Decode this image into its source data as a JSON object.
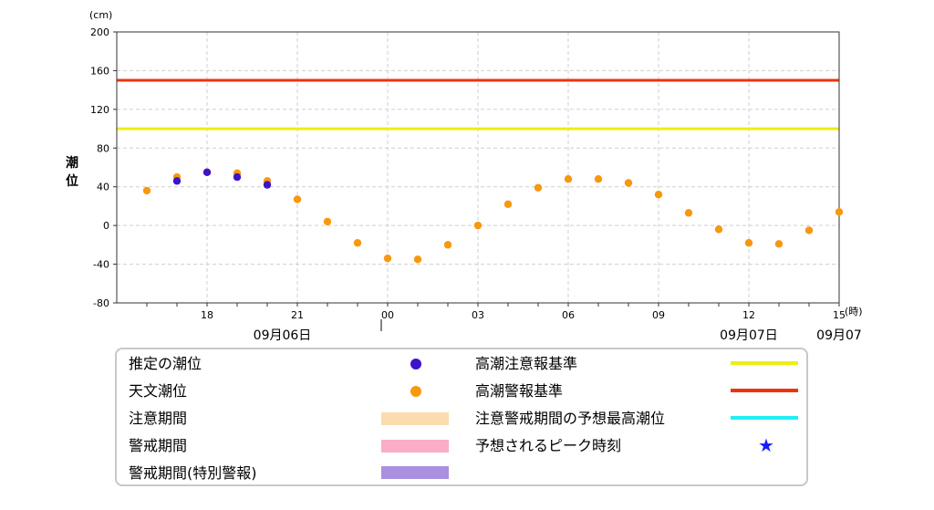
{
  "chart_data": {
    "type": "scatter",
    "y_unit": "(cm)",
    "x_unit": "(時)",
    "ylabel": "潮位",
    "ylim": [
      -80,
      200
    ],
    "yticks": [
      200,
      160,
      120,
      80,
      40,
      0,
      -40,
      -80
    ],
    "xlim": [
      15,
      39
    ],
    "xticks": [
      {
        "x": 18,
        "label": "18"
      },
      {
        "x": 21,
        "label": "21"
      },
      {
        "x": 24,
        "label": "00"
      },
      {
        "x": 27,
        "label": "03"
      },
      {
        "x": 30,
        "label": "06"
      },
      {
        "x": 33,
        "label": "09"
      },
      {
        "x": 36,
        "label": "12"
      },
      {
        "x": 39,
        "label": "15"
      }
    ],
    "date_labels": [
      {
        "x": 20.5,
        "label": "09月06日"
      },
      {
        "x": 36,
        "label": "09月07日"
      },
      {
        "x": 39,
        "label": "09月07"
      }
    ],
    "grid": true,
    "thresholds": [
      {
        "name": "高潮警報基準",
        "value": 150,
        "color": "#ee3311"
      },
      {
        "name": "高潮注意報基準",
        "value": 100,
        "color": "#eeee11"
      }
    ],
    "series": [
      {
        "name": "天文潮位",
        "color": "#f7980f",
        "x": [
          16,
          17,
          18,
          19,
          20,
          21,
          22,
          23,
          24,
          25,
          26,
          27,
          28,
          29,
          30,
          31,
          32,
          33,
          34,
          35,
          36,
          37,
          38,
          39
        ],
        "y": [
          36,
          50,
          55,
          54,
          46,
          27,
          4,
          -18,
          -34,
          -35,
          -20,
          0,
          22,
          39,
          48,
          48,
          44,
          32,
          13,
          -4,
          -18,
          -19,
          -5,
          14
        ]
      },
      {
        "name": "推定の潮位",
        "color": "#3c14cc",
        "x": [
          17,
          18,
          19,
          20
        ],
        "y": [
          46,
          55,
          50,
          42
        ]
      }
    ]
  },
  "legend": {
    "estimated": "推定の潮位",
    "astronomical": "天文潮位",
    "caution_period": "注意期間",
    "warning_period": "警戒期間",
    "warning_period_special": "警戒期間(特別警報)",
    "caution_threshold": "高潮注意報基準",
    "warning_threshold": "高潮警報基準",
    "forecast_max": "注意警戒期間の予想最高潮位",
    "peak_time": "予想されるピーク時刻",
    "colors": {
      "estimated": "#3c14cc",
      "astronomical": "#f7980f",
      "caution_period": "#fbdcae",
      "warning_period": "#f9adc8",
      "warning_period_special": "#ab8fe0",
      "caution_threshold": "#eeee11",
      "warning_threshold": "#ee3311",
      "forecast_max": "#1ff0f5",
      "peak_time": "#1a1aff"
    }
  }
}
